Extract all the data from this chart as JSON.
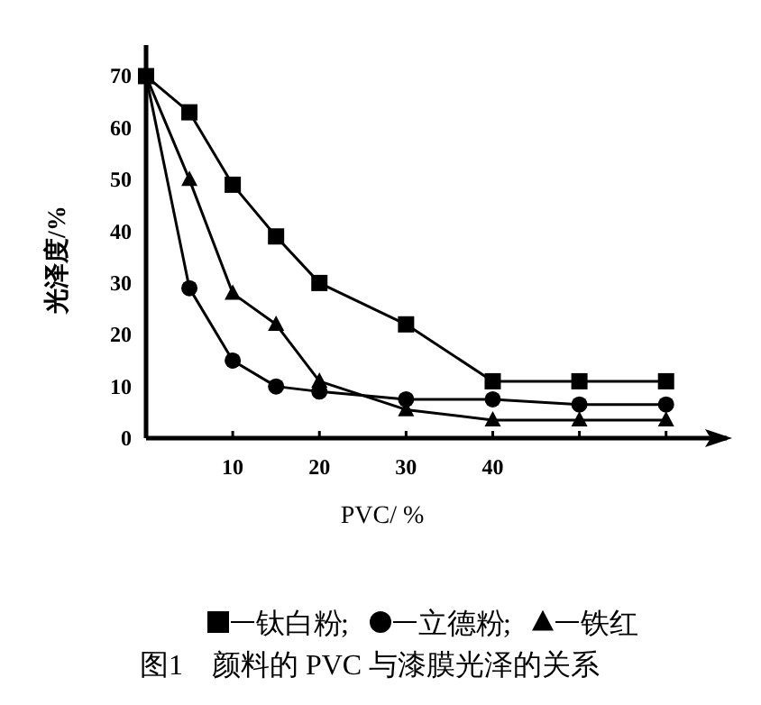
{
  "chart_data": {
    "type": "line",
    "title": "图1　颜料的 PVC 与漆膜光泽的关系",
    "xlabel": "PVC/ %",
    "ylabel": "光泽度/%",
    "x": [
      0,
      5,
      10,
      15,
      20,
      30,
      40,
      50,
      60
    ],
    "series": [
      {
        "name": "钛白粉",
        "color": "#000000",
        "marker": "square",
        "values": [
          70,
          63,
          49,
          39,
          30,
          22,
          11,
          11,
          11
        ]
      },
      {
        "name": "立德粉",
        "color": "#000000",
        "marker": "circle",
        "values": [
          70,
          29,
          15,
          10,
          9,
          7.5,
          7.5,
          6.5,
          6.5
        ]
      },
      {
        "name": "铁红",
        "color": "#000000",
        "marker": "triangle",
        "values": [
          70,
          50,
          28,
          22,
          11,
          5.5,
          3.5,
          3.5,
          3.5
        ]
      }
    ],
    "xlim": [
      0,
      67
    ],
    "ylim": [
      0,
      76
    ],
    "xticks": [
      10,
      20,
      30,
      40,
      {
        "value": 50,
        "label": null
      },
      {
        "value": 60,
        "label": null
      }
    ],
    "yticks": [
      0,
      10,
      20,
      30,
      40,
      50,
      60,
      70
    ],
    "grid": false,
    "legend": "bottom",
    "annotations": [
      ";",
      ";"
    ]
  }
}
